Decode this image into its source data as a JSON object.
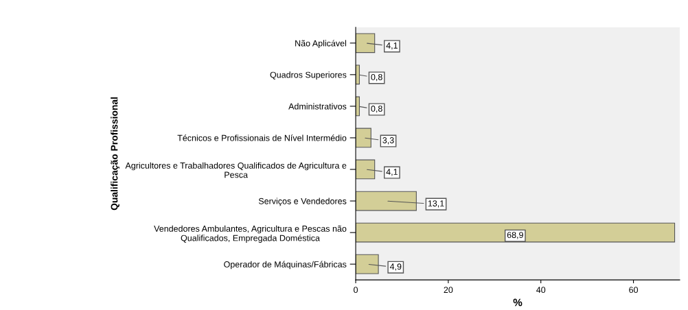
{
  "chart_data": {
    "type": "bar",
    "orientation": "horizontal",
    "xlabel": "%",
    "ylabel": "Qualificação Profissional",
    "categories": [
      "Não Aplicável",
      "Quadros Superiores",
      "Administrativos",
      "Técnicos e Profissionais de Nível Intermédio",
      "Agricultores e Trabalhadores Qualificados de Agricultura e\nPesca",
      "Serviços e Vendedores",
      "Vendedores Ambulantes, Agricultura e Pescas não\nQualificados, Empregada Doméstica",
      "Operador de Máquinas/Fábricas"
    ],
    "values": [
      4.1,
      0.8,
      0.8,
      3.3,
      4.1,
      13.1,
      68.9,
      4.9
    ],
    "value_labels": [
      "4,1",
      "0,8",
      "0,8",
      "3,3",
      "4,1",
      "13,1",
      "68,9",
      "4,9"
    ],
    "color": "#d3ce97",
    "xlim": [
      0,
      70
    ],
    "xticks": [
      0,
      20,
      40,
      60
    ],
    "grid": false,
    "legend": false
  }
}
